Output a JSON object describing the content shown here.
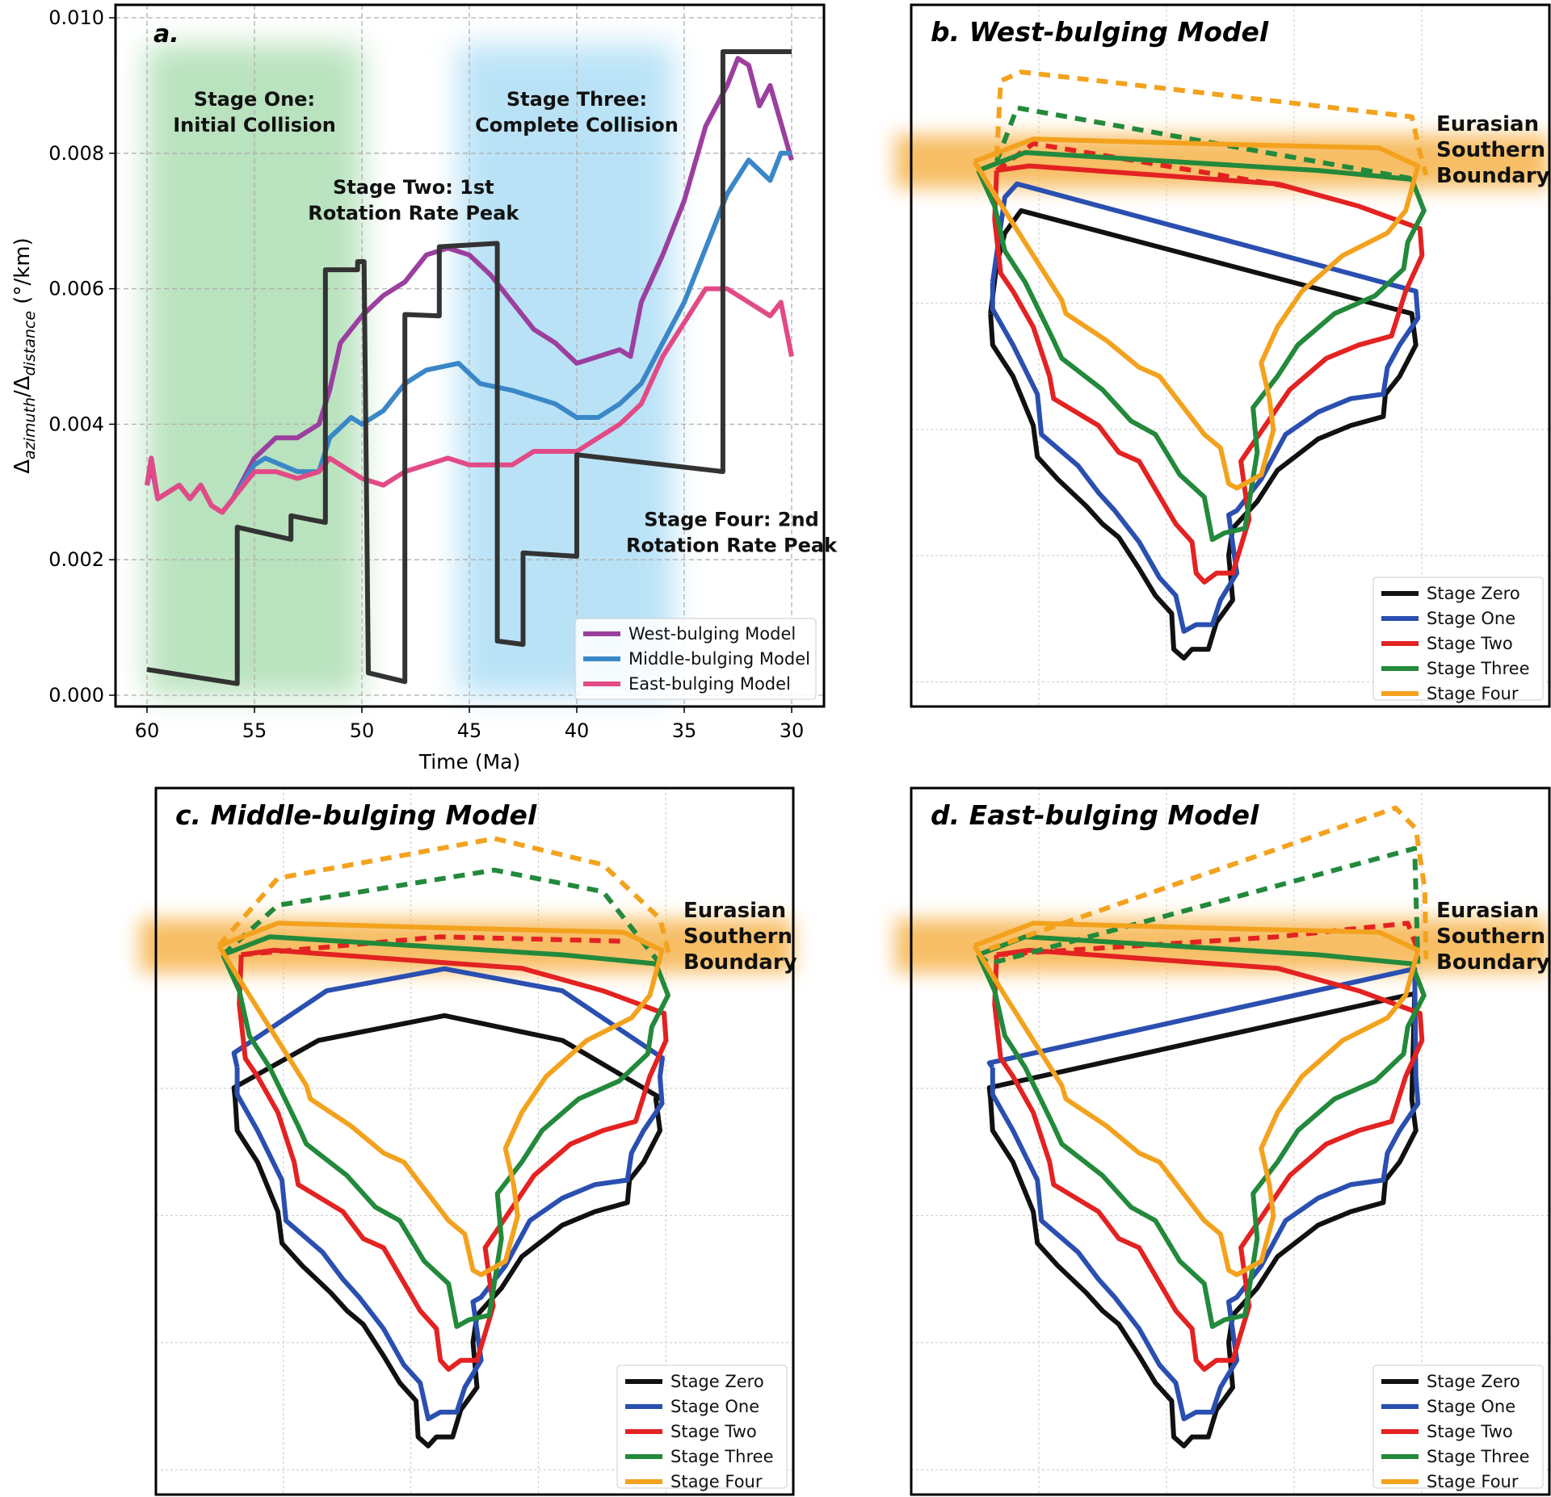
{
  "chart_data": [
    {
      "type": "line",
      "panel_label": "a.",
      "xlabel": "Time (Ma)",
      "ylabel": "Δazimuth/Δdistance (°/km)",
      "ylabel_parts": {
        "delta": "Δ",
        "sub1": "azimuth",
        "slash": "/",
        "sub2": "distance",
        "unit": " (°/km)"
      },
      "xlim": [
        61.5,
        28.5
      ],
      "ylim": [
        -0.0002,
        0.0101
      ],
      "x_reversed": true,
      "xticks": [
        "60",
        "55",
        "50",
        "45",
        "40",
        "35",
        "30"
      ],
      "xtick_values": [
        60,
        55,
        50,
        45,
        40,
        35,
        30
      ],
      "yticks": [
        "0.000",
        "0.002",
        "0.004",
        "0.006",
        "0.008",
        "0.010"
      ],
      "ytick_values": [
        0,
        0.002,
        0.004,
        0.006,
        0.008,
        0.01
      ],
      "grid": true,
      "legend_position": "bottom-right",
      "shaded_regions": [
        {
          "from": 60,
          "to": 50,
          "color": "#a8dcae"
        },
        {
          "from": 45.5,
          "to": 35.5,
          "color": "#a9dcf5"
        }
      ],
      "annotations": [
        {
          "lines": [
            "Stage One:",
            "Initial Collision"
          ],
          "x": 55,
          "y": 0.0087
        },
        {
          "lines": [
            "Stage Two: 1st",
            "Rotation Rate Peak"
          ],
          "x": 47.6,
          "y": 0.0074
        },
        {
          "lines": [
            "Stage Three:",
            "Complete Collision"
          ],
          "x": 40,
          "y": 0.0087
        },
        {
          "lines": [
            "Stage Four: 2nd",
            "Rotation Rate Peak"
          ],
          "x": 32.8,
          "y": 0.0025
        }
      ],
      "series": [
        {
          "name": "West-bulging Model",
          "color": "#9b3f9f",
          "x": [
            60,
            59.8,
            59.5,
            59,
            58.5,
            58,
            57.5,
            57,
            56.5,
            56,
            55,
            54,
            53,
            52,
            51.5,
            51,
            50,
            49,
            48,
            47,
            46,
            45,
            44,
            43,
            42,
            41,
            40,
            39,
            38,
            37.5,
            37,
            36,
            35,
            34,
            33,
            32.5,
            32,
            31.5,
            31,
            30
          ],
          "y": [
            0.0031,
            0.0034,
            0.0029,
            0.003,
            0.0031,
            0.0029,
            0.0031,
            0.0028,
            0.0027,
            0.0029,
            0.0035,
            0.0038,
            0.0038,
            0.004,
            0.0045,
            0.0052,
            0.0056,
            0.0059,
            0.0061,
            0.0065,
            0.0066,
            0.0065,
            0.0062,
            0.0058,
            0.0054,
            0.0052,
            0.0049,
            0.005,
            0.0051,
            0.005,
            0.0058,
            0.0065,
            0.0073,
            0.0084,
            0.009,
            0.0094,
            0.0093,
            0.0087,
            0.009,
            0.0079
          ]
        },
        {
          "name": "Middle-bulging Model",
          "color": "#3a87c8",
          "x": [
            60,
            59.8,
            59.5,
            59,
            58.5,
            58,
            57.5,
            57,
            56.5,
            56,
            55,
            54.5,
            53,
            52,
            51.5,
            50.5,
            50,
            49,
            48,
            47,
            45.5,
            44.5,
            43,
            41,
            40,
            39,
            38,
            37,
            36,
            35,
            34,
            33,
            32,
            31,
            30.5,
            30
          ],
          "y": [
            0.0031,
            0.0035,
            0.0029,
            0.003,
            0.0031,
            0.0029,
            0.0031,
            0.0028,
            0.0027,
            0.0029,
            0.0034,
            0.0035,
            0.0033,
            0.0033,
            0.0038,
            0.0041,
            0.004,
            0.0042,
            0.0046,
            0.0048,
            0.0049,
            0.0046,
            0.0045,
            0.0043,
            0.0041,
            0.0041,
            0.0043,
            0.0046,
            0.0052,
            0.0058,
            0.0066,
            0.0074,
            0.0079,
            0.0076,
            0.008,
            0.008
          ]
        },
        {
          "name": "East-bulging Model",
          "color": "#e24a86",
          "x": [
            60,
            59.8,
            59.5,
            59,
            58.5,
            58,
            57.5,
            57,
            56.5,
            56,
            55,
            54,
            53,
            52,
            51.5,
            50,
            49,
            48,
            46,
            45,
            43,
            42,
            40,
            39,
            38,
            37,
            36,
            35,
            34,
            33,
            32,
            31,
            30.5,
            30
          ],
          "y": [
            0.0031,
            0.0035,
            0.0029,
            0.003,
            0.0031,
            0.0029,
            0.0031,
            0.0028,
            0.0027,
            0.0029,
            0.0033,
            0.0033,
            0.0032,
            0.0033,
            0.0035,
            0.0032,
            0.0031,
            0.0033,
            0.0035,
            0.0034,
            0.0034,
            0.0036,
            0.0036,
            0.0038,
            0.004,
            0.0043,
            0.005,
            0.0055,
            0.006,
            0.006,
            0.0058,
            0.0056,
            0.0058,
            0.005
          ]
        },
        {
          "color": "#333333",
          "style": "step",
          "x": [
            60,
            55.8,
            55.8,
            53.3,
            53.3,
            51.7,
            51.7,
            50.2,
            50.2,
            49.9,
            49.7,
            48.0,
            48.0,
            46.4,
            46.4,
            43.7,
            43.7,
            42.5,
            42.5,
            40.0,
            40.0,
            33.2,
            33.2,
            30
          ],
          "y": [
            0.00038,
            0.00017,
            0.00248,
            0.0023,
            0.00265,
            0.00255,
            0.00628,
            0.00628,
            0.0064,
            0.0064,
            0.00033,
            0.0002,
            0.00562,
            0.0056,
            0.00662,
            0.00667,
            0.0008,
            0.00075,
            0.0021,
            0.00205,
            0.00355,
            0.0033,
            0.0095,
            0.0095
          ]
        }
      ]
    },
    {
      "type": "line",
      "title": "b. West-bulging Model",
      "annotation": [
        "Eurasian",
        "Southern",
        "Boundary"
      ],
      "legend_position": "bottom-right",
      "grid": true
    },
    {
      "type": "line",
      "title": "c. Middle-bulging Model",
      "annotation": [
        "Eurasian",
        "Southern",
        "Boundary"
      ],
      "legend_position": "bottom-right",
      "grid": true
    },
    {
      "type": "line",
      "title": "d. East-bulging Model",
      "annotation": [
        "Eurasian",
        "Southern",
        "Boundary"
      ],
      "legend_position": "bottom-right",
      "grid": true
    }
  ],
  "stage_legend": [
    {
      "name": "Stage Zero",
      "color": "#111111"
    },
    {
      "name": "Stage One",
      "color": "#2a4fb0"
    },
    {
      "name": "Stage Two",
      "color": "#e32222"
    },
    {
      "name": "Stage Three",
      "color": "#23893b"
    },
    {
      "name": "Stage Four",
      "color": "#f3a21e"
    }
  ],
  "band_color": "#f6b34c"
}
